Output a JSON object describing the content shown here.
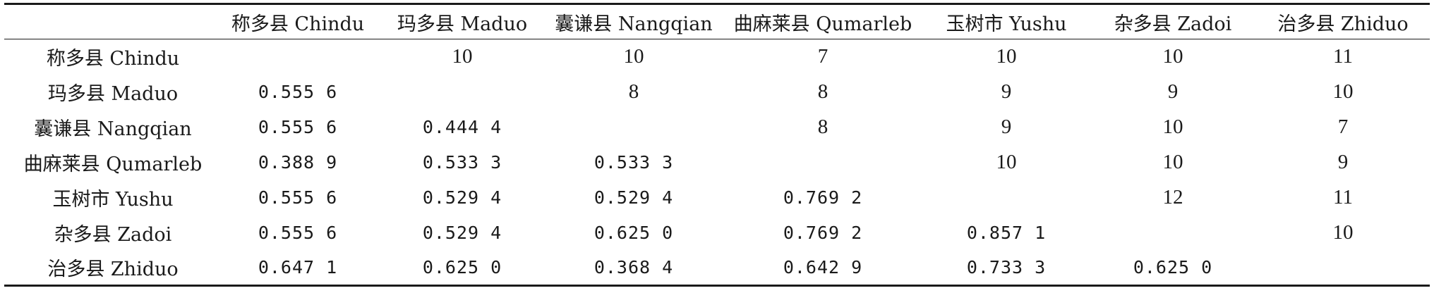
{
  "table": {
    "corner": "",
    "columns": [
      "称多县 Chindu",
      "玛多县 Maduo",
      "囊谦县 Nangqian",
      "曲麻莱县 Qumarleb",
      "玉树市 Yushu",
      "杂多县 Zadoi",
      "治多县 Zhiduo"
    ],
    "rows": [
      {
        "label": "称多县 Chindu",
        "cells": [
          "",
          "10",
          "10",
          "7",
          "10",
          "10",
          "11"
        ]
      },
      {
        "label": "玛多县 Maduo",
        "cells": [
          "0.555 6",
          "",
          "8",
          "8",
          "9",
          "9",
          "10"
        ]
      },
      {
        "label": "囊谦县 Nangqian",
        "cells": [
          "0.555 6",
          "0.444 4",
          "",
          "8",
          "9",
          "10",
          "7"
        ]
      },
      {
        "label": "曲麻莱县 Qumarleb",
        "cells": [
          "0.388 9",
          "0.533 3",
          "0.533 3",
          "",
          "10",
          "10",
          "9"
        ]
      },
      {
        "label": "玉树市 Yushu",
        "cells": [
          "0.555 6",
          "0.529 4",
          "0.529 4",
          "0.769 2",
          "",
          "12",
          "11"
        ]
      },
      {
        "label": "杂多县 Zadoi",
        "cells": [
          "0.555 6",
          "0.529 4",
          "0.625 0",
          "0.769 2",
          "0.857 1",
          "",
          "10"
        ]
      },
      {
        "label": "治多县 Zhiduo",
        "cells": [
          "0.647 1",
          "0.625 0",
          "0.368 4",
          "0.642 9",
          "0.733 3",
          "0.625 0",
          ""
        ]
      }
    ]
  }
}
